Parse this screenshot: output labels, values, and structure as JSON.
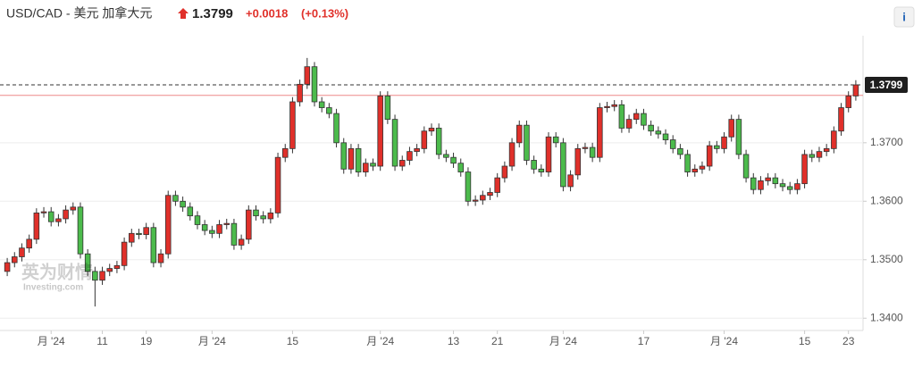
{
  "header": {
    "pair": "USD/CAD - 美元 加拿大元",
    "price": "1.3799",
    "change": "+0.0018",
    "change_pct": "(+0.13%)",
    "info_icon": "i"
  },
  "watermark": {
    "brand": "英为财情",
    "site": "Investing.com"
  },
  "chart_data": {
    "type": "candlestick",
    "open": [
      1.348,
      1.3495,
      1.3505,
      1.352,
      1.3535,
      1.358,
      1.3582,
      1.3565,
      1.357,
      1.3585,
      1.359,
      1.351,
      1.348,
      1.3465,
      1.348,
      1.3485,
      1.349,
      1.353,
      1.3545,
      1.3543,
      1.3555,
      1.3495,
      1.351,
      1.361,
      1.36,
      1.359,
      1.3575,
      1.356,
      1.355,
      1.3545,
      1.356,
      1.3562,
      1.3525,
      1.3535,
      1.3585,
      1.3575,
      1.357,
      1.358,
      1.3675,
      1.369,
      1.377,
      1.38,
      1.383,
      1.377,
      1.376,
      1.375,
      1.37,
      1.3655,
      1.369,
      1.365,
      1.3665,
      1.366,
      1.378,
      1.374,
      1.366,
      1.367,
      1.3685,
      1.369,
      1.372,
      1.3725,
      1.368,
      1.3675,
      1.3665,
      1.365,
      1.36,
      1.3602,
      1.361,
      1.3615,
      1.364,
      1.366,
      1.37,
      1.373,
      1.367,
      1.3655,
      1.365,
      1.371,
      1.37,
      1.3625,
      1.3645,
      1.369,
      1.3692,
      1.3675,
      1.376,
      1.3762,
      1.3765,
      1.3725,
      1.374,
      1.375,
      1.373,
      1.372,
      1.3715,
      1.3705,
      1.369,
      1.368,
      1.365,
      1.3655,
      1.366,
      1.3695,
      1.369,
      1.371,
      1.374,
      1.368,
      1.364,
      1.362,
      1.3635,
      1.364,
      1.363,
      1.3625,
      1.362,
      1.363,
      1.368,
      1.3675,
      1.3685,
      1.369,
      1.372,
      1.376,
      1.378
    ],
    "high": [
      1.3503,
      1.3513,
      1.3528,
      1.3543,
      1.3588,
      1.359,
      1.359,
      1.3578,
      1.3593,
      1.3598,
      1.3598,
      1.3518,
      1.3488,
      1.3488,
      1.3493,
      1.3498,
      1.3538,
      1.3553,
      1.3553,
      1.3563,
      1.3563,
      1.3518,
      1.3618,
      1.3618,
      1.3608,
      1.3598,
      1.3583,
      1.3568,
      1.3558,
      1.3568,
      1.357,
      1.357,
      1.3543,
      1.3593,
      1.3593,
      1.3583,
      1.3588,
      1.3683,
      1.3698,
      1.3778,
      1.3808,
      1.3845,
      1.3838,
      1.3778,
      1.3768,
      1.3758,
      1.3708,
      1.3698,
      1.3698,
      1.3673,
      1.3673,
      1.3788,
      1.3788,
      1.3748,
      1.3678,
      1.3693,
      1.3698,
      1.3728,
      1.3733,
      1.3733,
      1.3688,
      1.3683,
      1.3673,
      1.3658,
      1.361,
      1.3618,
      1.3623,
      1.3648,
      1.3668,
      1.3708,
      1.3738,
      1.3738,
      1.3678,
      1.3663,
      1.3718,
      1.3718,
      1.3708,
      1.3653,
      1.3698,
      1.37,
      1.37,
      1.3768,
      1.377,
      1.3773,
      1.3773,
      1.3748,
      1.3758,
      1.3758,
      1.3738,
      1.3728,
      1.3723,
      1.3713,
      1.3698,
      1.3688,
      1.3663,
      1.3668,
      1.3703,
      1.3703,
      1.3718,
      1.3748,
      1.3748,
      1.3688,
      1.3648,
      1.3643,
      1.3648,
      1.3648,
      1.3638,
      1.3633,
      1.3638,
      1.3688,
      1.3688,
      1.3693,
      1.3698,
      1.3728,
      1.3768,
      1.3788,
      1.3807
    ],
    "low": [
      1.3472,
      1.3487,
      1.3497,
      1.3512,
      1.3527,
      1.3572,
      1.3557,
      1.3557,
      1.3562,
      1.3577,
      1.3502,
      1.3472,
      1.342,
      1.3457,
      1.3472,
      1.3477,
      1.3482,
      1.3522,
      1.3535,
      1.3535,
      1.3487,
      1.3487,
      1.3502,
      1.3592,
      1.3582,
      1.3567,
      1.3552,
      1.3542,
      1.3537,
      1.3537,
      1.3552,
      1.3517,
      1.3517,
      1.3527,
      1.3567,
      1.3562,
      1.3562,
      1.3572,
      1.3667,
      1.3682,
      1.3762,
      1.3792,
      1.3762,
      1.3752,
      1.3742,
      1.3692,
      1.3647,
      1.3647,
      1.3642,
      1.3642,
      1.3652,
      1.3652,
      1.3732,
      1.3652,
      1.3652,
      1.3662,
      1.3677,
      1.3682,
      1.3712,
      1.3672,
      1.3667,
      1.3657,
      1.3642,
      1.3592,
      1.3592,
      1.3594,
      1.3602,
      1.3607,
      1.3632,
      1.3652,
      1.3692,
      1.3662,
      1.3647,
      1.3642,
      1.3642,
      1.3692,
      1.3617,
      1.3617,
      1.3637,
      1.3682,
      1.3667,
      1.3667,
      1.3752,
      1.3754,
      1.3717,
      1.3717,
      1.3732,
      1.3722,
      1.3712,
      1.3707,
      1.3697,
      1.3682,
      1.3672,
      1.3642,
      1.3642,
      1.3647,
      1.3652,
      1.3682,
      1.3682,
      1.3702,
      1.3672,
      1.3632,
      1.3612,
      1.3612,
      1.3627,
      1.3622,
      1.3617,
      1.3612,
      1.3612,
      1.3622,
      1.3667,
      1.3667,
      1.3677,
      1.3682,
      1.3712,
      1.3752,
      1.3772
    ],
    "close": [
      1.3495,
      1.3505,
      1.352,
      1.3535,
      1.358,
      1.3582,
      1.3565,
      1.357,
      1.3585,
      1.359,
      1.351,
      1.348,
      1.3465,
      1.348,
      1.3485,
      1.349,
      1.353,
      1.3545,
      1.3543,
      1.3555,
      1.3495,
      1.351,
      1.361,
      1.36,
      1.359,
      1.3575,
      1.356,
      1.355,
      1.3545,
      1.356,
      1.3562,
      1.3525,
      1.3535,
      1.3585,
      1.3575,
      1.357,
      1.358,
      1.3675,
      1.369,
      1.377,
      1.38,
      1.383,
      1.377,
      1.376,
      1.375,
      1.37,
      1.3655,
      1.369,
      1.365,
      1.3665,
      1.366,
      1.378,
      1.374,
      1.366,
      1.367,
      1.3685,
      1.369,
      1.372,
      1.3725,
      1.368,
      1.3675,
      1.3665,
      1.365,
      1.36,
      1.3602,
      1.361,
      1.3615,
      1.364,
      1.366,
      1.37,
      1.373,
      1.367,
      1.3655,
      1.365,
      1.371,
      1.37,
      1.3625,
      1.3645,
      1.369,
      1.3692,
      1.3675,
      1.376,
      1.3762,
      1.3765,
      1.3725,
      1.374,
      1.375,
      1.373,
      1.372,
      1.3715,
      1.3705,
      1.369,
      1.368,
      1.365,
      1.3655,
      1.366,
      1.3695,
      1.369,
      1.371,
      1.374,
      1.368,
      1.364,
      1.362,
      1.3635,
      1.364,
      1.363,
      1.3625,
      1.362,
      1.363,
      1.368,
      1.3675,
      1.3685,
      1.369,
      1.372,
      1.376,
      1.378,
      1.3799
    ],
    "up_color": "#e0302a",
    "down_color": "#4cbb4c",
    "ylim": [
      1.3379,
      1.3883
    ],
    "yticks": [
      {
        "value": 1.34,
        "label": "1.3400"
      },
      {
        "value": 1.35,
        "label": "1.3500"
      },
      {
        "value": 1.36,
        "label": "1.3600"
      },
      {
        "value": 1.37,
        "label": "1.3700"
      }
    ],
    "grid": true,
    "xticks": [
      {
        "value": 6,
        "label": "月 '24"
      },
      {
        "value": 13,
        "label": "11"
      },
      {
        "value": 19,
        "label": "19"
      },
      {
        "value": 28,
        "label": "月 '24"
      },
      {
        "value": 39,
        "label": "15"
      },
      {
        "value": 51,
        "label": "月 '24"
      },
      {
        "value": 61,
        "label": "13"
      },
      {
        "value": 67,
        "label": "21"
      },
      {
        "value": 76,
        "label": "月 '24"
      },
      {
        "value": 87,
        "label": "17"
      },
      {
        "value": 98,
        "label": "月 '24"
      },
      {
        "value": 109,
        "label": "15"
      },
      {
        "value": 115,
        "label": "23"
      }
    ],
    "last_price": {
      "value": 1.3799,
      "label": "1.3799"
    },
    "previous_close": 1.3781
  }
}
